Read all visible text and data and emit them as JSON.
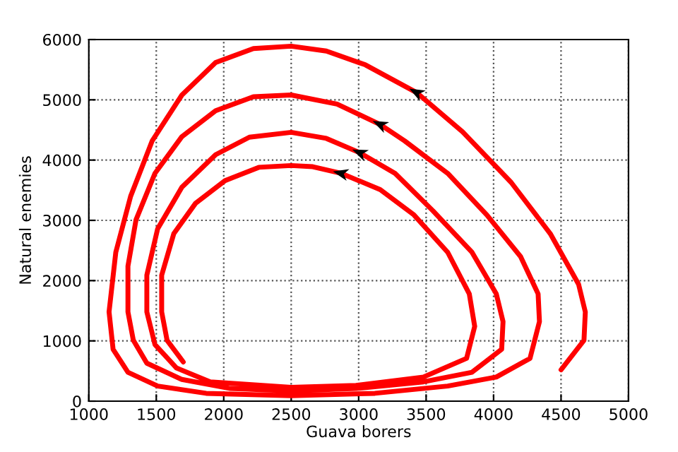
{
  "chart_data": {
    "type": "line",
    "xlabel": "Guava borers",
    "ylabel": "Natural enemies",
    "xlim": [
      1000,
      5000
    ],
    "ylim": [
      0,
      6000
    ],
    "xticks": [
      1000,
      1500,
      2000,
      2500,
      3000,
      3500,
      4000,
      4500,
      5000
    ],
    "yticks": [
      0,
      1000,
      2000,
      3000,
      4000,
      5000,
      6000
    ],
    "grid": true,
    "marker": "none",
    "line_style": "solid",
    "series": [
      {
        "color": "#ff0000",
        "x": [
          4500,
          4670,
          4680,
          4630,
          4420,
          4130,
          3770,
          3430,
          3050,
          2760,
          2500,
          2220,
          1940,
          1690,
          1470,
          1310,
          1200,
          1150,
          1180,
          1290,
          1510,
          1870,
          2500,
          3120,
          3660,
          4020,
          4270,
          4340,
          4330,
          4200,
          3950,
          3660,
          3340,
          3160,
          2840,
          2500,
          2220,
          1940,
          1690,
          1490,
          1350,
          1290,
          1290,
          1330,
          1430,
          1690,
          2050,
          2500,
          2980,
          3480,
          3840,
          4060,
          4070,
          4020,
          3840,
          3550,
          3270,
          3010,
          2760,
          2500,
          2190,
          1940,
          1690,
          1510,
          1430,
          1430,
          1490,
          1650,
          1900,
          2500,
          2980,
          3480,
          3800,
          3860,
          3820,
          3660,
          3410,
          3160,
          2870,
          2660,
          2500,
          2260,
          2010,
          1790,
          1630,
          1540,
          1540,
          1580,
          1700
        ],
        "values": [
          520,
          1010,
          1480,
          1940,
          2780,
          3630,
          4470,
          5120,
          5580,
          5810,
          5890,
          5850,
          5620,
          5080,
          4320,
          3400,
          2470,
          1480,
          860,
          480,
          250,
          130,
          90,
          130,
          250,
          400,
          710,
          1320,
          1780,
          2400,
          3090,
          3780,
          4320,
          4590,
          4930,
          5080,
          5050,
          4820,
          4390,
          3780,
          3010,
          2240,
          1480,
          1010,
          630,
          360,
          210,
          170,
          210,
          320,
          480,
          860,
          1320,
          1780,
          2470,
          3160,
          3780,
          4120,
          4360,
          4460,
          4380,
          4090,
          3550,
          2860,
          2090,
          1480,
          940,
          550,
          320,
          230,
          260,
          400,
          710,
          1240,
          1780,
          2470,
          3090,
          3510,
          3780,
          3890,
          3910,
          3880,
          3660,
          3280,
          2780,
          2090,
          1480,
          1010,
          650
        ]
      }
    ]
  }
}
